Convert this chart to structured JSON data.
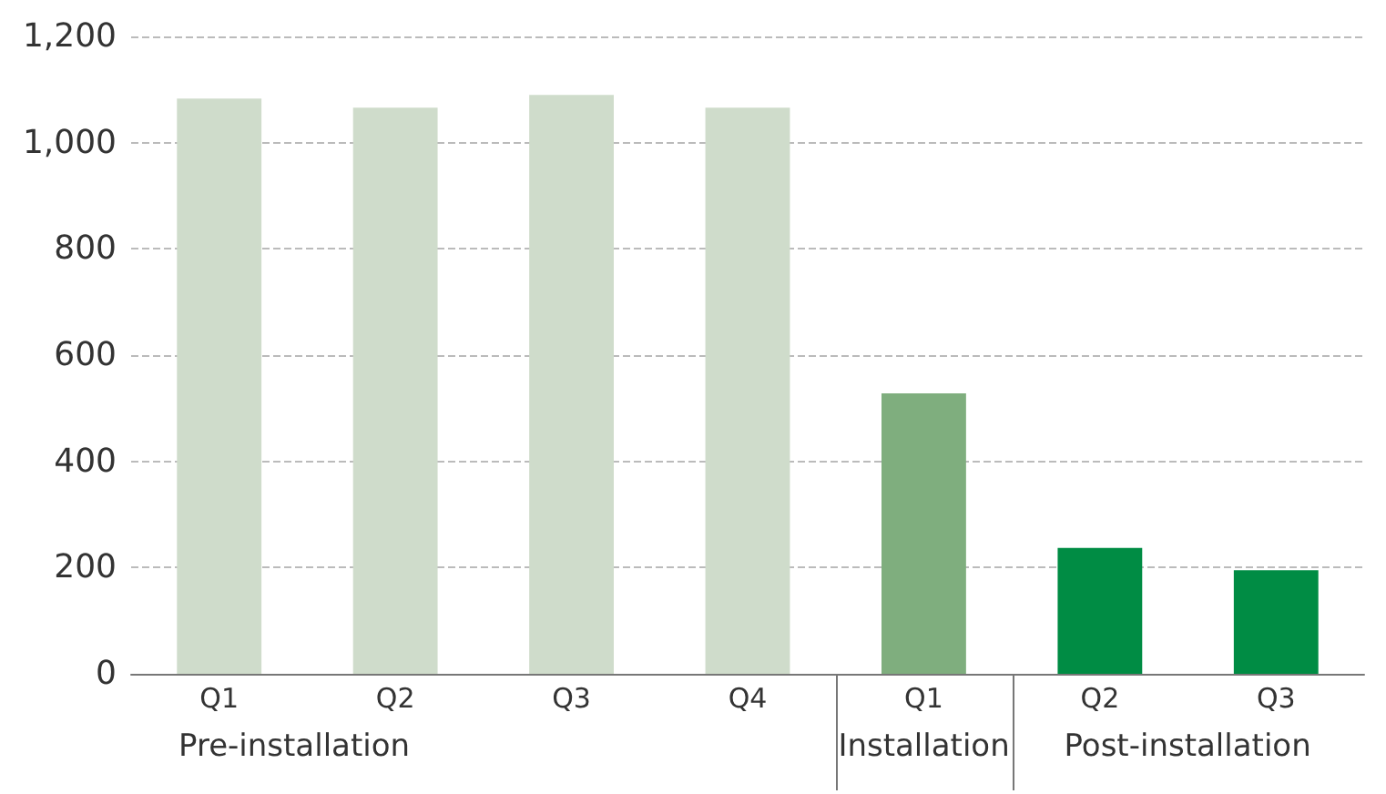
{
  "chart_data": {
    "type": "bar",
    "categories": [
      "Q1",
      "Q2",
      "Q3",
      "Q4",
      "Q1",
      "Q2",
      "Q3"
    ],
    "values": [
      1083,
      1066,
      1090,
      1066,
      528,
      237,
      195
    ],
    "colors": [
      "#cfdccb",
      "#cfdccb",
      "#cfdccb",
      "#cfdccb",
      "#7fae7e",
      "#008c44",
      "#008c44"
    ],
    "ylim": [
      0,
      1200
    ],
    "yticks": [
      0,
      200,
      400,
      600,
      800,
      {
        "value": 1000,
        "label": "1,000"
      },
      {
        "value": 1200,
        "label": "1,200"
      }
    ],
    "grid": "y",
    "annotations": [
      "Pre-installation",
      "Installation",
      "Post-installation"
    ]
  }
}
